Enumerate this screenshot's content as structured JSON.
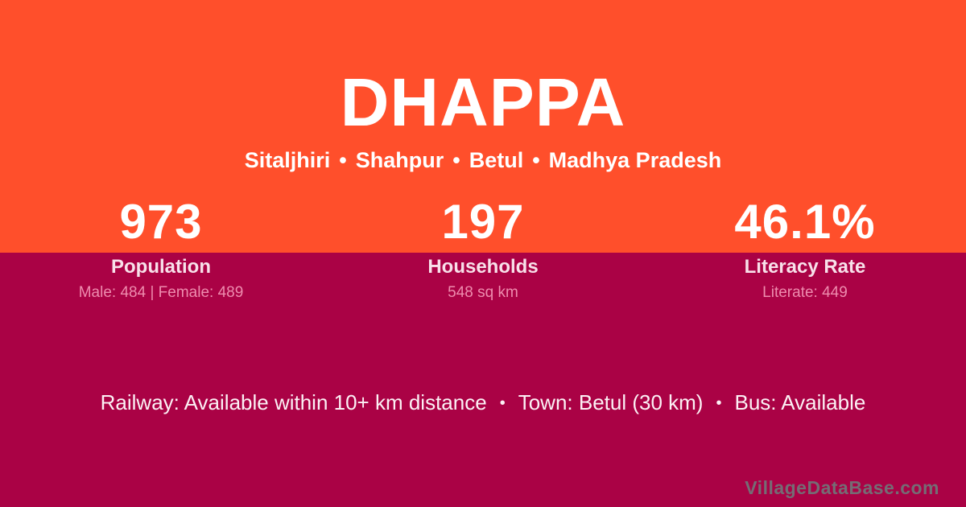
{
  "card": {
    "title": "DHAPPA",
    "location": {
      "parts": [
        "Sitaljhiri",
        "Shahpur",
        "Betul",
        "Madhya Pradesh"
      ],
      "separator": "•"
    },
    "stats": [
      {
        "value": "973",
        "label": "Population",
        "detail": "Male: 484 | Female: 489"
      },
      {
        "value": "197",
        "label": "Households",
        "detail": "548 sq km"
      },
      {
        "value": "46.1%",
        "label": "Literacy Rate",
        "detail": "Literate: 449"
      }
    ],
    "footer": {
      "parts": [
        "Railway: Available within 10+ km distance",
        "Town: Betul (30 km)",
        "Bus: Available"
      ],
      "separator": "•"
    },
    "watermark": "VillageDataBase.com",
    "colors": {
      "top_band": "#FF4F2B",
      "bottom_band": "#AA0245",
      "title_text": "#FFFFFF",
      "label_text": "#F8E1EA",
      "detail_text": "#EE8CAE",
      "footer_text": "#FCF1F5",
      "watermark_text": "#756C74"
    }
  }
}
